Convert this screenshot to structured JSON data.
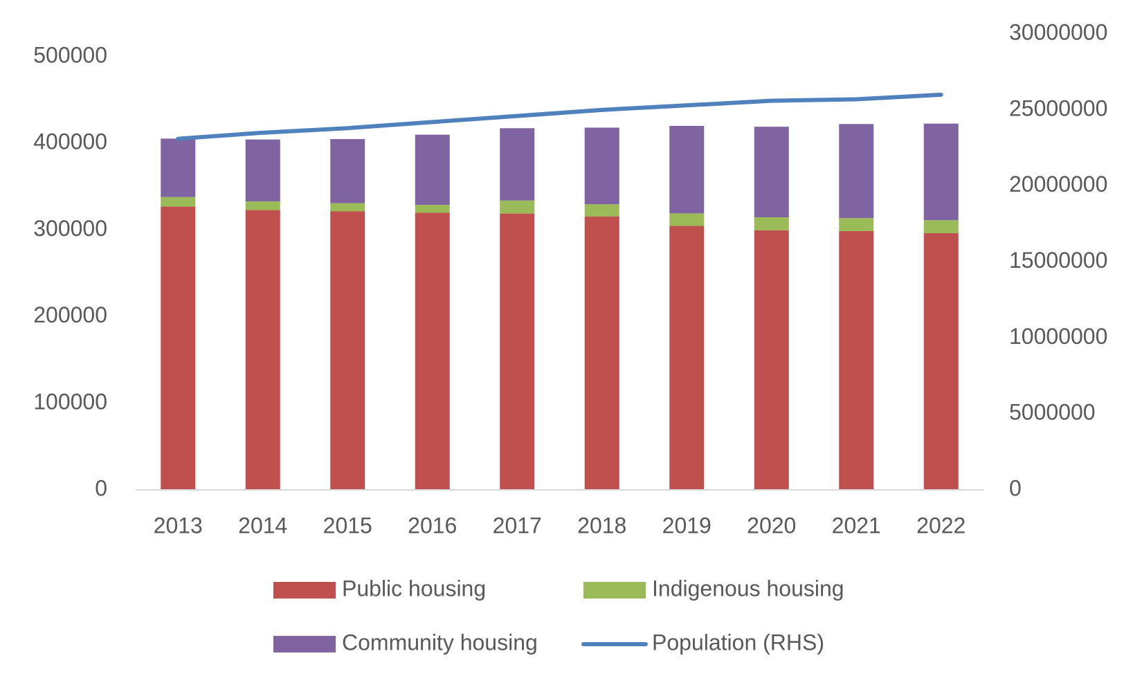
{
  "chart_data": {
    "type": "bar",
    "categories": [
      "2013",
      "2014",
      "2015",
      "2016",
      "2017",
      "2018",
      "2019",
      "2020",
      "2021",
      "2022"
    ],
    "series": [
      {
        "name": "Public housing",
        "color": "#c0504d",
        "values": [
          327000,
          323000,
          321500,
          320000,
          319000,
          315700,
          304700,
          299700,
          298800,
          296300
        ]
      },
      {
        "name": "Indigenous housing",
        "color": "#9bbb59",
        "values": [
          11000,
          10000,
          9500,
          9000,
          15000,
          14000,
          14500,
          15000,
          15000,
          15000
        ]
      },
      {
        "name": "Community housing",
        "color": "#8064a2",
        "values": [
          67500,
          71500,
          74000,
          81000,
          83500,
          88500,
          101000,
          104500,
          108500,
          111500
        ]
      },
      {
        "name": "Population (RHS)",
        "color": "#4f81bd",
        "axis": "y2",
        "type": "line",
        "values": [
          23100000,
          23500000,
          23800000,
          24200000,
          24600000,
          25000000,
          25300000,
          25600000,
          25700000,
          26000000
        ]
      }
    ],
    "ylim": [
      0,
      500000
    ],
    "yticks": [
      0,
      100000,
      200000,
      300000,
      400000,
      500000
    ],
    "y2lim": [
      0,
      30000000
    ],
    "y2ticks": [
      0,
      5000000,
      10000000,
      15000000,
      20000000,
      25000000,
      30000000
    ],
    "stacked": true
  }
}
